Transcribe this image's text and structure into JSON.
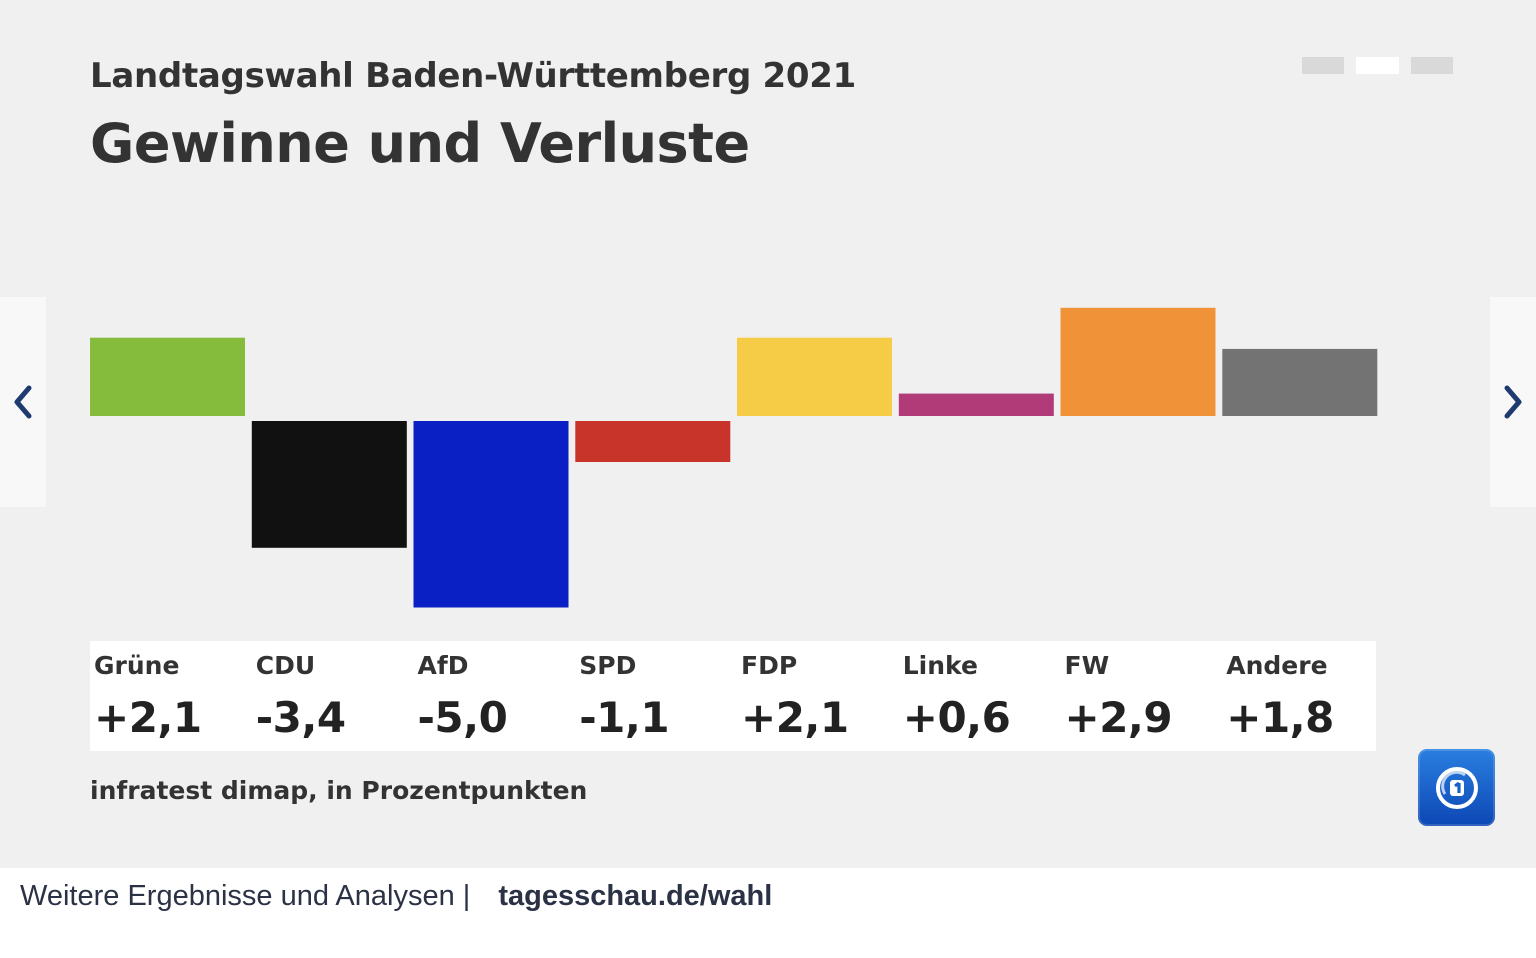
{
  "header": {
    "supertitle": "Landtagswahl Baden-Württemberg 2021",
    "title": "Gewinne und Verluste"
  },
  "pager": {
    "count": 3,
    "active_index": 1
  },
  "source_note": "infratest dimap, in Prozentpunkten",
  "footer": {
    "text": "Weitere Ergebnisse und Analysen |",
    "link": "tagesschau.de/wahl"
  },
  "icons": {
    "prev": "chevron-left-icon",
    "next": "chevron-right-icon",
    "logo": "tagesschau-logo"
  },
  "chart_data": {
    "type": "bar",
    "title": "Gewinne und Verluste",
    "subtitle": "Landtagswahl Baden-Württemberg 2021",
    "xlabel": "",
    "ylabel": "",
    "categories": [
      "Grüne",
      "CDU",
      "AfD",
      "SPD",
      "FDP",
      "Linke",
      "FW",
      "Andere"
    ],
    "values": [
      2.1,
      -3.4,
      -5.0,
      -1.1,
      2.1,
      0.6,
      2.9,
      1.8
    ],
    "value_labels": [
      "+2,1",
      "-3,4",
      "-5,0",
      "-1,1",
      "+2,1",
      "+0,6",
      "+2,9",
      "+1,8"
    ],
    "colors": [
      "#86bc3c",
      "#111111",
      "#0a1fc4",
      "#c8332a",
      "#f6cb45",
      "#b13a78",
      "#ef9238",
      "#737373"
    ],
    "ylim": [
      -5.0,
      2.9
    ],
    "grid": false,
    "legend": "none"
  }
}
